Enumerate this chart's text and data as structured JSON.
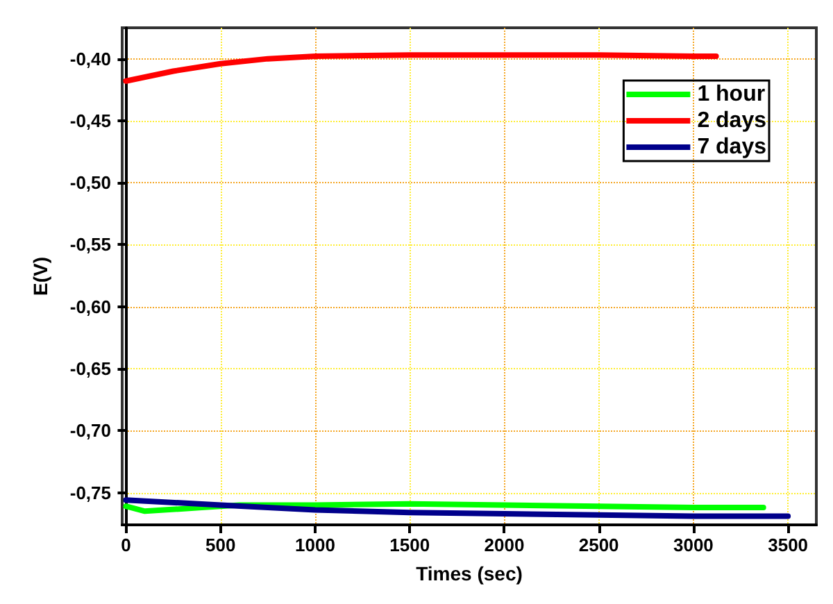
{
  "chart_data": {
    "type": "line",
    "xlabel": "Times (sec)",
    "ylabel": "E(V)",
    "xlim": [
      -20,
      3650
    ],
    "xticks": [
      0,
      500,
      1000,
      1500,
      2000,
      2500,
      3000,
      3500
    ],
    "ylim": [
      -0.776,
      -0.375
    ],
    "yticks": [
      {
        "value": -0.75,
        "label": "-0,75"
      },
      {
        "value": -0.7,
        "label": "-0,70"
      },
      {
        "value": -0.65,
        "label": "-0,65"
      },
      {
        "value": -0.6,
        "label": "-0,60"
      },
      {
        "value": -0.55,
        "label": "-0,55"
      },
      {
        "value": -0.5,
        "label": "-0,50"
      },
      {
        "value": -0.45,
        "label": "-0,45"
      },
      {
        "value": -0.4,
        "label": "-0,40"
      }
    ],
    "grid": true,
    "legend": "top right",
    "marker": "none",
    "line_style": "solid",
    "series": [
      {
        "name": "1 hour",
        "color": "#00ff00",
        "x": [
          0,
          100,
          200,
          400,
          600,
          1000,
          1500,
          2000,
          2500,
          3000,
          3370
        ],
        "values": [
          -0.761,
          -0.765,
          -0.764,
          -0.762,
          -0.76,
          -0.76,
          -0.759,
          -0.76,
          -0.761,
          -0.762,
          -0.762
        ]
      },
      {
        "name": "2 days",
        "color": "#ff0000",
        "x": [
          0,
          250,
          500,
          750,
          1000,
          1500,
          2000,
          2500,
          3000,
          3120
        ],
        "values": [
          -0.418,
          -0.41,
          -0.404,
          -0.4,
          -0.398,
          -0.397,
          -0.397,
          -0.397,
          -0.398,
          -0.398
        ]
      },
      {
        "name": "7 days",
        "color": "#00008b",
        "x": [
          0,
          500,
          1000,
          1500,
          2000,
          2500,
          3000,
          3500
        ],
        "values": [
          -0.756,
          -0.76,
          -0.764,
          -0.766,
          -0.767,
          -0.768,
          -0.769,
          -0.769
        ]
      }
    ]
  }
}
